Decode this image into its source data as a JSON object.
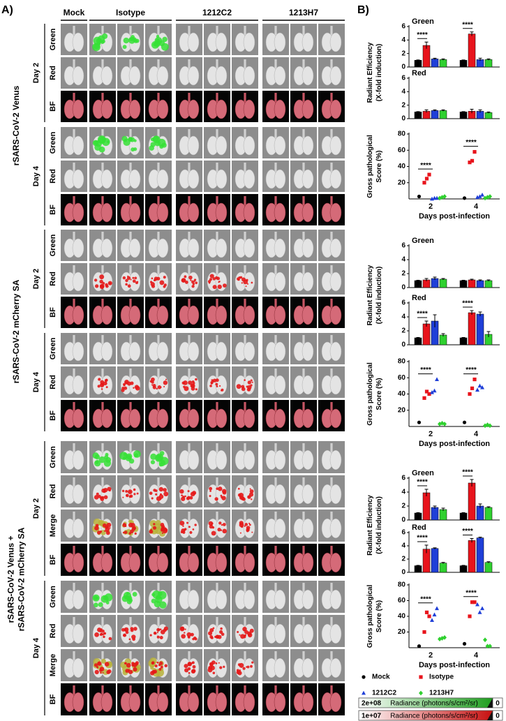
{
  "panel_a": {
    "label": "A)",
    "columns": [
      "Mock",
      "Isotype",
      "1212C2",
      "1213H7"
    ],
    "sections": [
      {
        "title": [
          "rSARS-CoV-2 Venus"
        ],
        "days": [
          {
            "label": "Day 2",
            "rows": [
              "Green",
              "Red",
              "BF"
            ]
          },
          {
            "label": "Day 4",
            "rows": [
              "Green",
              "Red",
              "BF"
            ]
          }
        ]
      },
      {
        "title": [
          "rSARS-CoV-2 mCherry SA"
        ],
        "days": [
          {
            "label": "Day 2",
            "rows": [
              "Green",
              "Red",
              "BF"
            ]
          },
          {
            "label": "Day 4",
            "rows": [
              "Green",
              "Red",
              "BF"
            ]
          }
        ]
      },
      {
        "title": [
          "rSARS-CoV-2 Venus +",
          "rSARS-CoV-2 mCherry SA"
        ],
        "days": [
          {
            "label": "Day 2",
            "rows": [
              "Green",
              "Red",
              "Merge",
              "BF"
            ]
          },
          {
            "label": "Day 4",
            "rows": [
              "Green",
              "Red",
              "Merge",
              "BF"
            ]
          }
        ]
      }
    ]
  },
  "panel_b": {
    "label": "B)"
  },
  "legend": {
    "series": [
      {
        "name": "Mock",
        "color": "#000000",
        "marker": "circle"
      },
      {
        "name": "Isotype",
        "color": "#e8141c",
        "marker": "square"
      },
      {
        "name": "1212C2",
        "color": "#1f3fd8",
        "marker": "triangle"
      },
      {
        "name": "1213H7",
        "color": "#2fd02f",
        "marker": "diamond"
      }
    ]
  },
  "scales": [
    {
      "max": "2e+08",
      "label": "Radiance (photons/s/cm²/sr)",
      "min": "0",
      "color": "#1e9e1e"
    },
    {
      "max": "1e+07",
      "label": "Radiance (photons/s/cm²/sr)",
      "min": "0",
      "color": "#c81010"
    }
  ],
  "chart_data": [
    {
      "type": "bar",
      "subtitle": "Green",
      "ylabel": [
        "Radiant Efficiency",
        "(X-fold induction)"
      ],
      "ylim": [
        0,
        6
      ],
      "yticks": [
        0,
        2,
        4,
        6
      ],
      "series": [
        {
          "values": [
            1,
            1
          ],
          "errors": [
            0.05,
            0.05
          ]
        },
        {
          "values": [
            3.2,
            4.9
          ],
          "errors": [
            0.5,
            0.3
          ]
        },
        {
          "values": [
            1.2,
            1.1
          ],
          "errors": [
            0.1,
            0.2
          ]
        },
        {
          "values": [
            1.1,
            1.1
          ],
          "errors": [
            0.1,
            0.1
          ]
        }
      ],
      "annotations": [
        "****",
        "****"
      ]
    },
    {
      "type": "bar",
      "subtitle": "Red",
      "ylim": [
        0,
        6
      ],
      "yticks": [
        0,
        2,
        4,
        6
      ],
      "series": [
        {
          "values": [
            1,
            1
          ],
          "errors": [
            0.05,
            0.05
          ]
        },
        {
          "values": [
            1.1,
            1.1
          ],
          "errors": [
            0.2,
            0.3
          ]
        },
        {
          "values": [
            1.2,
            1.1
          ],
          "errors": [
            0.1,
            0.2
          ]
        },
        {
          "values": [
            1.2,
            0.9
          ],
          "errors": [
            0.1,
            0.1
          ]
        }
      ]
    },
    {
      "type": "scatter",
      "ylabel": [
        "Gross pathological",
        "Score (%)"
      ],
      "categories": [
        "2",
        "4"
      ],
      "xlabel": "Days post-infection",
      "ylim": [
        0,
        80
      ],
      "yticks": [
        20,
        40,
        60,
        80
      ],
      "series": [
        {
          "values": [
            [
              3
            ],
            [
              1
            ]
          ]
        },
        {
          "values": [
            [
              20,
              25,
              30
            ],
            [
              45,
              47,
              58
            ]
          ]
        },
        {
          "values": [
            [
              0,
              1,
              1
            ],
            [
              2,
              3,
              5
            ]
          ]
        },
        {
          "values": [
            [
              1,
              2,
              3
            ],
            [
              1,
              2,
              3
            ]
          ]
        }
      ],
      "annotations": [
        "****",
        "****"
      ]
    },
    {
      "type": "bar",
      "subtitle": "Green",
      "ylabel": [
        "Radiant Efficiency",
        "(X-fold induction)"
      ],
      "ylim": [
        0,
        6
      ],
      "yticks": [
        0,
        2,
        4,
        6
      ],
      "series": [
        {
          "values": [
            1,
            1
          ],
          "errors": [
            0.05,
            0.05
          ]
        },
        {
          "values": [
            1.1,
            1.1
          ],
          "errors": [
            0.2,
            0.1
          ]
        },
        {
          "values": [
            1.3,
            1.0
          ],
          "errors": [
            0.2,
            0.1
          ]
        },
        {
          "values": [
            1.2,
            1.0
          ],
          "errors": [
            0.1,
            0.1
          ]
        }
      ]
    },
    {
      "type": "bar",
      "subtitle": "Red",
      "ylim": [
        0,
        6
      ],
      "yticks": [
        0,
        2,
        4,
        6
      ],
      "series": [
        {
          "values": [
            1,
            1
          ],
          "errors": [
            0.05,
            0.05
          ]
        },
        {
          "values": [
            3.0,
            4.6
          ],
          "errors": [
            0.4,
            0.3
          ]
        },
        {
          "values": [
            3.4,
            4.4
          ],
          "errors": [
            0.9,
            0.3
          ]
        },
        {
          "values": [
            1.4,
            1.5
          ],
          "errors": [
            0.2,
            0.4
          ]
        }
      ],
      "annotations": [
        "****",
        "****"
      ]
    },
    {
      "type": "scatter",
      "ylabel": [
        "Gross pathological",
        "Score (%)"
      ],
      "categories": [
        "2",
        "4"
      ],
      "xlabel": "Days post-infection",
      "ylim": [
        0,
        80
      ],
      "yticks": [
        20,
        40,
        60,
        80
      ],
      "series": [
        {
          "values": [
            [
              5
            ],
            [
              5
            ]
          ]
        },
        {
          "values": [
            [
              35,
              43,
              40
            ],
            [
              40,
              47,
              58
            ]
          ]
        },
        {
          "values": [
            [
              42,
              44,
              58
            ],
            [
              45,
              50,
              48
            ]
          ]
        },
        {
          "values": [
            [
              3,
              4,
              3
            ],
            [
              1,
              2,
              1
            ]
          ]
        }
      ],
      "annotations": [
        "****",
        "****"
      ]
    },
    {
      "type": "bar",
      "subtitle": "Green",
      "ylabel": [
        "Radiant Efficiency",
        "(X-fold induction)"
      ],
      "ylim": [
        0,
        6
      ],
      "yticks": [
        0,
        2,
        4,
        6
      ],
      "series": [
        {
          "values": [
            1,
            1
          ],
          "errors": [
            0.05,
            0.05
          ]
        },
        {
          "values": [
            3.9,
            5.3
          ],
          "errors": [
            0.5,
            0.5
          ]
        },
        {
          "values": [
            1.8,
            2.0
          ],
          "errors": [
            0.2,
            0.3
          ]
        },
        {
          "values": [
            1.5,
            1.8
          ],
          "errors": [
            0.2,
            0.1
          ]
        }
      ],
      "annotations": [
        "****",
        "****"
      ]
    },
    {
      "type": "bar",
      "subtitle": "Red",
      "ylim": [
        0,
        6
      ],
      "yticks": [
        0,
        2,
        4,
        6
      ],
      "series": [
        {
          "values": [
            1,
            1
          ],
          "errors": [
            0.05,
            0.05
          ]
        },
        {
          "values": [
            3.5,
            4.8
          ],
          "errors": [
            0.6,
            0.3
          ]
        },
        {
          "values": [
            3.6,
            5.2
          ],
          "errors": [
            0.1,
            0.1
          ]
        },
        {
          "values": [
            1.4,
            1.5
          ],
          "errors": [
            0.1,
            0.1
          ]
        }
      ],
      "annotations": [
        "****",
        "****"
      ]
    },
    {
      "type": "scatter",
      "ylabel": [
        "Gross pathological",
        "Score (%)"
      ],
      "categories": [
        "2",
        "4"
      ],
      "xlabel": "Days post-infection",
      "ylim": [
        0,
        80
      ],
      "yticks": [
        20,
        40,
        60,
        80
      ],
      "series": [
        {
          "values": [
            [
              2
            ],
            [
              5
            ]
          ]
        },
        {
          "values": [
            [
              20,
              45,
              40
            ],
            [
              40,
              58,
              58
            ]
          ]
        },
        {
          "values": [
            [
              35,
              42,
              50
            ],
            [
              55,
              45,
              50
            ]
          ]
        },
        {
          "values": [
            [
              11,
              12,
              13
            ],
            [
              10,
              2,
              2
            ]
          ]
        }
      ],
      "annotations": [
        "****",
        "****"
      ]
    }
  ]
}
